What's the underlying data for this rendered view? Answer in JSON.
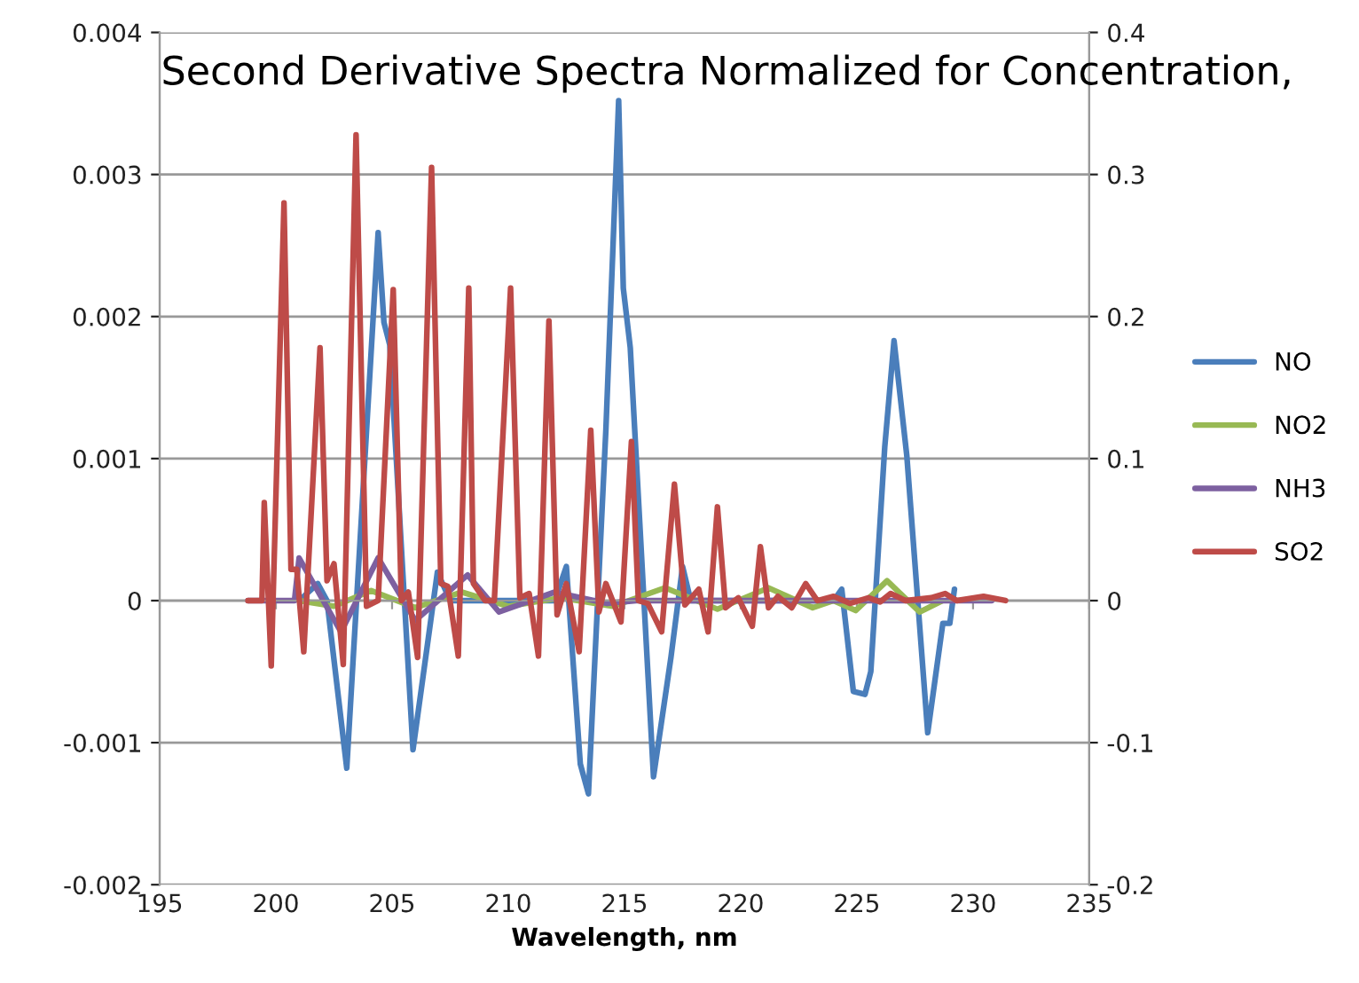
{
  "chart_data": {
    "type": "line",
    "title": "Second Derivative Spectra Normalized for Concentration,",
    "xlabel": "Wavelength, nm",
    "xlim": [
      195,
      235
    ],
    "xticks": [
      195,
      200,
      205,
      210,
      215,
      220,
      225,
      230,
      235
    ],
    "ylim": [
      -0.002,
      0.004
    ],
    "yticks": [
      -0.002,
      -0.001,
      0,
      0.001,
      0.002,
      0.003,
      0.004
    ],
    "y2lim": [
      -0.2,
      0.4
    ],
    "y2ticks": [
      -0.2,
      -0.1,
      0,
      0.1,
      0.2,
      0.3,
      0.4
    ],
    "grid": "y",
    "legend": "right",
    "marker": "none",
    "line_style": "solid",
    "series": [
      {
        "name": "NO",
        "color": "#4a7ebb",
        "x": [
          201.0,
          201.8,
          202.2,
          203.05,
          204.4,
          204.65,
          204.9,
          205.9,
          206.95,
          207.5,
          208.5,
          212.0,
          212.5,
          213.1,
          213.45,
          214.2,
          214.75,
          214.95,
          215.25,
          216.25,
          217.0,
          217.5,
          217.85,
          219.0,
          224.0,
          224.35,
          224.85,
          225.35,
          225.6,
          226.2,
          226.6,
          227.15,
          228.05,
          228.7,
          229.0,
          229.2
        ],
        "values": [
          0,
          0.00012,
          0.0,
          -0.00118,
          0.00259,
          0.00196,
          0.0018,
          -0.00105,
          0.0002,
          0.0,
          0.0,
          0.0,
          0.00024,
          -0.00115,
          -0.00136,
          0.0012,
          0.00352,
          0.0022,
          0.00178,
          -0.00124,
          -0.0004,
          0.00024,
          0.0,
          0.0,
          0.0,
          8e-05,
          -0.00064,
          -0.00066,
          -0.0005,
          0.00108,
          0.00183,
          0.00102,
          -0.00093,
          -0.00016,
          -0.00016,
          8e-05
        ]
      },
      {
        "name": "NO2",
        "color": "#98b954",
        "x": [
          201.0,
          202.5,
          204.1,
          206.0,
          208.0,
          210.0,
          212.25,
          214.5,
          216.75,
          219.0,
          221.2,
          223.1,
          224.0,
          224.95,
          226.3,
          227.7,
          228.7
        ],
        "values": [
          0,
          -4e-05,
          7e-05,
          -5e-05,
          6e-05,
          -4e-05,
          2e-05,
          -4e-05,
          9e-05,
          -6e-05,
          9e-05,
          -5e-05,
          0.0,
          -7e-05,
          0.00014,
          -8e-05,
          0.0
        ]
      },
      {
        "name": "NH3",
        "color": "#7d60a0",
        "x": [
          198.8,
          200.8,
          201.0,
          202.8,
          204.4,
          206.0,
          208.25,
          209.6,
          212.0,
          214.25,
          215.5,
          220.0,
          225.0,
          230.8
        ],
        "values": [
          0,
          0,
          0.0003,
          -0.00022,
          0.0003,
          -0.00014,
          0.00018,
          -8e-05,
          6e-05,
          -2e-05,
          0.0,
          0.0,
          0.0,
          0.0
        ]
      },
      {
        "name": "SO2",
        "color": "#be4b48",
        "axis": "y2",
        "x": [
          198.8,
          199.4,
          199.5,
          199.8,
          200.35,
          200.65,
          200.9,
          201.2,
          201.9,
          202.2,
          202.5,
          202.9,
          203.45,
          203.9,
          204.4,
          205.05,
          205.4,
          205.7,
          206.1,
          206.7,
          207.1,
          207.4,
          207.85,
          208.3,
          208.5,
          209.0,
          209.4,
          210.1,
          210.5,
          210.9,
          211.3,
          211.75,
          212.1,
          212.5,
          213.05,
          213.55,
          213.9,
          214.2,
          214.85,
          215.3,
          215.6,
          216.0,
          216.6,
          217.15,
          217.6,
          218.2,
          218.6,
          219.0,
          219.35,
          219.9,
          220.5,
          220.85,
          221.2,
          221.6,
          222.2,
          222.8,
          223.3,
          224.0,
          224.7,
          225.5,
          226.0,
          226.45,
          227.1,
          228.2,
          228.8,
          229.3,
          230.45,
          231.4
        ],
        "values": [
          0,
          0,
          0.069,
          -0.046,
          0.28,
          0.022,
          0.022,
          -0.036,
          0.178,
          0.014,
          0.026,
          -0.045,
          0.328,
          -0.004,
          0.0,
          0.219,
          0.0,
          0.006,
          -0.04,
          0.305,
          0.012,
          0.01,
          -0.039,
          0.22,
          0.012,
          0.0,
          0.0,
          0.22,
          0.002,
          0.005,
          -0.039,
          0.197,
          -0.01,
          0.012,
          -0.036,
          0.12,
          -0.008,
          0.012,
          -0.015,
          0.112,
          0.0,
          -0.002,
          -0.022,
          0.082,
          -0.003,
          0.008,
          -0.022,
          0.066,
          -0.005,
          0.002,
          -0.018,
          0.038,
          -0.005,
          0.003,
          -0.005,
          0.012,
          0.0,
          0.003,
          -0.002,
          0.002,
          -0.001,
          0.005,
          0.0,
          0.002,
          0.005,
          0.0,
          0.003,
          0.0
        ]
      }
    ]
  }
}
